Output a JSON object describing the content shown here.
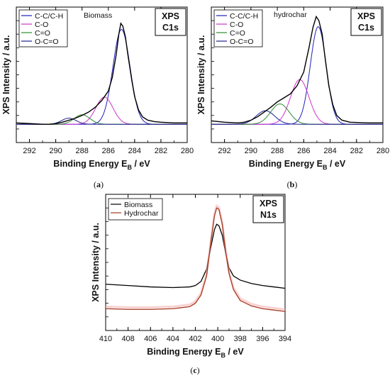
{
  "chart_data": [
    {
      "id": "a",
      "type": "line",
      "caption": "(a)",
      "xlabel_main": "Binding Energy ",
      "xlabel_sym": "E",
      "xlabel_sub": "B",
      "xlabel_unit": " / eV",
      "ylabel": "XPS Intensity / a.u.",
      "xlim": [
        293,
        280
      ],
      "xticks": [
        292,
        290,
        288,
        286,
        284,
        282,
        280
      ],
      "ylim": [
        0,
        1.0
      ],
      "box_lines": [
        "XPS",
        "C1s"
      ],
      "annotation": "Biomass",
      "legend_position": "top-left",
      "envelope": {
        "color": "#000000",
        "points": [
          [
            293,
            0.145
          ],
          [
            292,
            0.14
          ],
          [
            291,
            0.135
          ],
          [
            290.5,
            0.135
          ],
          [
            290,
            0.14
          ],
          [
            289.5,
            0.15
          ],
          [
            289,
            0.165
          ],
          [
            288.5,
            0.18
          ],
          [
            288,
            0.2
          ],
          [
            287.5,
            0.225
          ],
          [
            287,
            0.26
          ],
          [
            286.5,
            0.31
          ],
          [
            286,
            0.38
          ],
          [
            285.7,
            0.48
          ],
          [
            285.4,
            0.65
          ],
          [
            285.2,
            0.8
          ],
          [
            285.05,
            0.88
          ],
          [
            284.9,
            0.86
          ],
          [
            284.7,
            0.78
          ],
          [
            284.5,
            0.64
          ],
          [
            284.2,
            0.45
          ],
          [
            284,
            0.34
          ],
          [
            283.7,
            0.24
          ],
          [
            283.4,
            0.19
          ],
          [
            283,
            0.165
          ],
          [
            282.5,
            0.155
          ],
          [
            282,
            0.15
          ],
          [
            281,
            0.145
          ],
          [
            280,
            0.145
          ]
        ]
      },
      "series": [
        {
          "name": "C-C/C-H",
          "color": "#1f1fbf",
          "center": 285.0,
          "width": 0.65,
          "height": 0.7
        },
        {
          "name": "C-O",
          "color": "#cc33cc",
          "center": 286.3,
          "width": 0.65,
          "height": 0.2
        },
        {
          "name": "C=O",
          "color": "#2e8b2e",
          "center": 288.0,
          "width": 0.6,
          "height": 0.07
        },
        {
          "name": "O-C=O",
          "color": "#1f1f8f",
          "center": 289.0,
          "width": 0.55,
          "height": 0.045
        }
      ],
      "baseline": 0.135
    },
    {
      "id": "b",
      "type": "line",
      "caption": "(b)",
      "xlabel_main": "Binding Energy ",
      "xlabel_sym": "E",
      "xlabel_sub": "B",
      "xlabel_unit": " / eV",
      "ylabel": "XPS Intensity / a.u.",
      "xlim": [
        293,
        280
      ],
      "xticks": [
        292,
        290,
        288,
        286,
        284,
        282,
        280
      ],
      "ylim": [
        0,
        1.0
      ],
      "box_lines": [
        "XPS",
        "C1s"
      ],
      "annotation": "hydrochar",
      "legend_position": "top-left",
      "envelope": {
        "color": "#000000",
        "points": [
          [
            293,
            0.16
          ],
          [
            292,
            0.15
          ],
          [
            291,
            0.145
          ],
          [
            290.5,
            0.15
          ],
          [
            290,
            0.165
          ],
          [
            289.5,
            0.19
          ],
          [
            289,
            0.225
          ],
          [
            288.5,
            0.26
          ],
          [
            288,
            0.3
          ],
          [
            287.5,
            0.33
          ],
          [
            287,
            0.36
          ],
          [
            286.5,
            0.42
          ],
          [
            286,
            0.52
          ],
          [
            285.6,
            0.7
          ],
          [
            285.3,
            0.85
          ],
          [
            285.05,
            0.93
          ],
          [
            284.85,
            0.9
          ],
          [
            284.6,
            0.8
          ],
          [
            284.4,
            0.64
          ],
          [
            284.1,
            0.42
          ],
          [
            283.8,
            0.28
          ],
          [
            283.5,
            0.2
          ],
          [
            283.1,
            0.165
          ],
          [
            282.5,
            0.15
          ],
          [
            282,
            0.148
          ],
          [
            281,
            0.145
          ],
          [
            280,
            0.145
          ]
        ]
      },
      "series": [
        {
          "name": "C-C/C-H",
          "color": "#1f1fbf",
          "center": 284.9,
          "width": 0.6,
          "height": 0.72
        },
        {
          "name": "C-O",
          "color": "#cc33cc",
          "center": 286.3,
          "width": 0.7,
          "height": 0.33
        },
        {
          "name": "C=O",
          "color": "#2e8b2e",
          "center": 287.8,
          "width": 0.7,
          "height": 0.15
        },
        {
          "name": "O-C=O",
          "color": "#1f1f8f",
          "center": 288.9,
          "width": 0.7,
          "height": 0.1
        }
      ],
      "baseline": 0.135
    },
    {
      "id": "c",
      "type": "line",
      "caption": "(c)",
      "xlabel_main": "Binding Energy ",
      "xlabel_sym": "E",
      "xlabel_sub": "B",
      "xlabel_unit": " / eV",
      "ylabel": "XPS Intensity / a.u.",
      "xlim": [
        410,
        394
      ],
      "xticks": [
        410,
        408,
        406,
        404,
        402,
        400,
        398,
        396,
        394
      ],
      "ylim": [
        0,
        1.0
      ],
      "box_lines": [
        "XPS",
        "N1s"
      ],
      "legend_position": "top-left",
      "series": [
        {
          "name": "Biomass",
          "color": "#000000",
          "points": [
            [
              410,
              0.34
            ],
            [
              408,
              0.33
            ],
            [
              406,
              0.32
            ],
            [
              404,
              0.315
            ],
            [
              402.5,
              0.32
            ],
            [
              402,
              0.33
            ],
            [
              401.5,
              0.36
            ],
            [
              401,
              0.45
            ],
            [
              400.6,
              0.62
            ],
            [
              400.3,
              0.74
            ],
            [
              400.1,
              0.78
            ],
            [
              399.9,
              0.77
            ],
            [
              399.6,
              0.7
            ],
            [
              399.3,
              0.57
            ],
            [
              399,
              0.46
            ],
            [
              398.6,
              0.4
            ],
            [
              398,
              0.37
            ],
            [
              397,
              0.345
            ],
            [
              396,
              0.33
            ],
            [
              395,
              0.32
            ],
            [
              394,
              0.31
            ]
          ]
        },
        {
          "name": "Hydrochar",
          "color": "#a5391f",
          "points": [
            [
              410,
              0.16
            ],
            [
              408,
              0.155
            ],
            [
              406,
              0.155
            ],
            [
              404,
              0.16
            ],
            [
              402.5,
              0.175
            ],
            [
              402,
              0.2
            ],
            [
              401.5,
              0.26
            ],
            [
              401,
              0.4
            ],
            [
              400.6,
              0.66
            ],
            [
              400.3,
              0.84
            ],
            [
              400.1,
              0.9
            ],
            [
              399.9,
              0.89
            ],
            [
              399.6,
              0.78
            ],
            [
              399.3,
              0.58
            ],
            [
              399,
              0.42
            ],
            [
              398.6,
              0.3
            ],
            [
              398,
              0.22
            ],
            [
              397,
              0.18
            ],
            [
              396,
              0.16
            ],
            [
              395,
              0.15
            ],
            [
              394,
              0.14
            ]
          ]
        }
      ]
    }
  ]
}
